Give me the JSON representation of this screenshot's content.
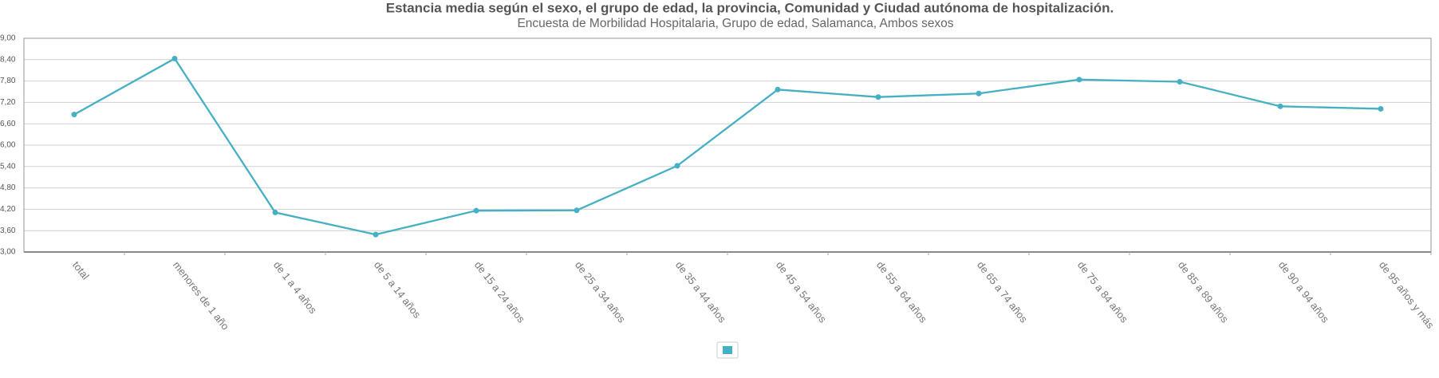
{
  "chart_data": {
    "type": "line",
    "title": "Estancia media según el sexo, el grupo de edad, la provincia, Comunidad y Ciudad autónoma de hospitalización.",
    "subtitle": "Encuesta de Morbilidad Hospitalaria, Grupo de edad, Salamanca, Ambos sexos",
    "categories": [
      "total",
      "menores de 1 año",
      "de 1 a 4 años",
      "de 5 a 14 años",
      "de 15 a 24 años",
      "de 25 a 34 años",
      "de 35 a 44 años",
      "de 45 a 54 años",
      "de 55 a 64 años",
      "de 65 a 74 años",
      "de 75 a 84 años",
      "de 85 a 89 años",
      "de 90 a 94 años",
      "de 95 años y más"
    ],
    "series": [
      {
        "color": "#45b0c3",
        "values": [
          6.86,
          8.43,
          4.11,
          3.49,
          4.16,
          4.17,
          5.42,
          7.56,
          7.35,
          7.45,
          7.84,
          7.78,
          7.09,
          7.02
        ]
      }
    ],
    "ylim": [
      3,
      9
    ],
    "yticks": [
      {
        "value": 3,
        "label": "3,00"
      },
      {
        "value": 3.6,
        "label": "3,60"
      },
      {
        "value": 4.2,
        "label": "4,20"
      },
      {
        "value": 4.8,
        "label": "4,80"
      },
      {
        "value": 5.4,
        "label": "5,40"
      },
      {
        "value": 6,
        "label": "6,00"
      },
      {
        "value": 6.6,
        "label": "6,60"
      },
      {
        "value": 7.2,
        "label": "7,20"
      },
      {
        "value": 7.8,
        "label": "7,80"
      },
      {
        "value": 8.4,
        "label": "8,40"
      },
      {
        "value": 9,
        "label": "9,00"
      }
    ],
    "grid": true
  }
}
